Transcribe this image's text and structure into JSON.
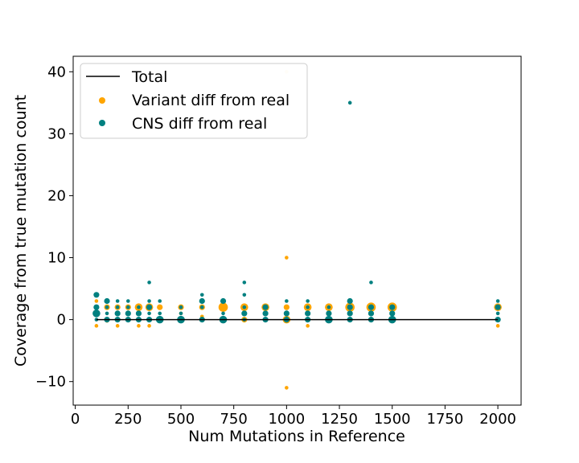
{
  "chart_data": {
    "type": "scatter",
    "title": "",
    "xlabel": "Num Mutations in Reference",
    "ylabel": "Coverage from true mutation count",
    "xlim": [
      -10,
      2110
    ],
    "ylim": [
      -13.8,
      42.5
    ],
    "xticks": [
      0,
      250,
      500,
      750,
      1000,
      1250,
      1500,
      1750,
      2000
    ],
    "yticks": [
      -10,
      0,
      10,
      20,
      30,
      40
    ],
    "grid": false,
    "legend_position": "top-left",
    "colors": {
      "total": "#000000",
      "variant": "#ffa500",
      "cns": "#008080"
    },
    "line": {
      "name": "Total",
      "x": [
        100,
        2000
      ],
      "y": [
        0,
        0
      ]
    },
    "series": [
      {
        "name": "Variant diff from real",
        "points": [
          {
            "x": 100,
            "y": 3,
            "s": 1
          },
          {
            "x": 100,
            "y": 1,
            "s": 1
          },
          {
            "x": 100,
            "y": -1,
            "s": 1
          },
          {
            "x": 150,
            "y": 2,
            "s": 2
          },
          {
            "x": 150,
            "y": -0.2,
            "s": 1
          },
          {
            "x": 200,
            "y": 2,
            "s": 2
          },
          {
            "x": 200,
            "y": -1,
            "s": 1
          },
          {
            "x": 250,
            "y": 2,
            "s": 2
          },
          {
            "x": 250,
            "y": 0,
            "s": 1
          },
          {
            "x": 300,
            "y": 2,
            "s": 3
          },
          {
            "x": 300,
            "y": -1,
            "s": 1
          },
          {
            "x": 350,
            "y": 2,
            "s": 3
          },
          {
            "x": 350,
            "y": -1,
            "s": 1
          },
          {
            "x": 400,
            "y": 2,
            "s": 2
          },
          {
            "x": 500,
            "y": 2,
            "s": 2
          },
          {
            "x": 500,
            "y": 1,
            "s": 1
          },
          {
            "x": 600,
            "y": 2,
            "s": 2
          },
          {
            "x": 600,
            "y": 0.5,
            "s": 1
          },
          {
            "x": 700,
            "y": 2,
            "s": 4
          },
          {
            "x": 800,
            "y": 2,
            "s": 3
          },
          {
            "x": 800,
            "y": 0,
            "s": 2
          },
          {
            "x": 900,
            "y": 2,
            "s": 3
          },
          {
            "x": 1000,
            "y": 40,
            "s": 1,
            "faint": true
          },
          {
            "x": 1000,
            "y": 10,
            "s": 1
          },
          {
            "x": 1000,
            "y": 2,
            "s": 2
          },
          {
            "x": 1000,
            "y": 0,
            "s": 3
          },
          {
            "x": 1000,
            "y": -11,
            "s": 1
          },
          {
            "x": 1100,
            "y": 2,
            "s": 3
          },
          {
            "x": 1100,
            "y": -1,
            "s": 1
          },
          {
            "x": 1200,
            "y": 2,
            "s": 3
          },
          {
            "x": 1300,
            "y": 2,
            "s": 4
          },
          {
            "x": 1400,
            "y": 2,
            "s": 4
          },
          {
            "x": 1500,
            "y": 2,
            "s": 4
          },
          {
            "x": 2000,
            "y": 2,
            "s": 3
          },
          {
            "x": 2000,
            "y": -1,
            "s": 1
          }
        ]
      },
      {
        "name": "CNS diff from real",
        "points": [
          {
            "x": 100,
            "y": 4,
            "s": 2
          },
          {
            "x": 100,
            "y": 2,
            "s": 2
          },
          {
            "x": 100,
            "y": 1,
            "s": 3
          },
          {
            "x": 100,
            "y": 0,
            "s": 1
          },
          {
            "x": 150,
            "y": 3,
            "s": 2
          },
          {
            "x": 150,
            "y": 2,
            "s": 1
          },
          {
            "x": 150,
            "y": 1,
            "s": 1
          },
          {
            "x": 150,
            "y": 0,
            "s": 2
          },
          {
            "x": 200,
            "y": 3,
            "s": 1
          },
          {
            "x": 200,
            "y": 2,
            "s": 1
          },
          {
            "x": 200,
            "y": 1,
            "s": 2
          },
          {
            "x": 200,
            "y": 0,
            "s": 2
          },
          {
            "x": 250,
            "y": 3,
            "s": 1
          },
          {
            "x": 250,
            "y": 2,
            "s": 1
          },
          {
            "x": 250,
            "y": 1,
            "s": 2
          },
          {
            "x": 250,
            "y": 0,
            "s": 2
          },
          {
            "x": 300,
            "y": 2,
            "s": 1
          },
          {
            "x": 300,
            "y": 1,
            "s": 2
          },
          {
            "x": 300,
            "y": 0,
            "s": 2
          },
          {
            "x": 350,
            "y": 6,
            "s": 1
          },
          {
            "x": 350,
            "y": 3,
            "s": 1
          },
          {
            "x": 350,
            "y": 2,
            "s": 2
          },
          {
            "x": 350,
            "y": 1,
            "s": 1
          },
          {
            "x": 350,
            "y": 0,
            "s": 2
          },
          {
            "x": 400,
            "y": 3,
            "s": 1
          },
          {
            "x": 400,
            "y": 1,
            "s": 1
          },
          {
            "x": 400,
            "y": 0,
            "s": 3
          },
          {
            "x": 500,
            "y": 2,
            "s": 1
          },
          {
            "x": 500,
            "y": 1,
            "s": 1
          },
          {
            "x": 500,
            "y": 0,
            "s": 3
          },
          {
            "x": 600,
            "y": 4,
            "s": 1
          },
          {
            "x": 600,
            "y": 3,
            "s": 2
          },
          {
            "x": 600,
            "y": 2,
            "s": 1
          },
          {
            "x": 600,
            "y": 0,
            "s": 2
          },
          {
            "x": 700,
            "y": 3,
            "s": 2
          },
          {
            "x": 700,
            "y": 1,
            "s": 1
          },
          {
            "x": 700,
            "y": 0,
            "s": 3
          },
          {
            "x": 800,
            "y": 6,
            "s": 1
          },
          {
            "x": 800,
            "y": 4,
            "s": 1
          },
          {
            "x": 800,
            "y": 2,
            "s": 1
          },
          {
            "x": 800,
            "y": 1,
            "s": 2
          },
          {
            "x": 800,
            "y": 0,
            "s": 1
          },
          {
            "x": 900,
            "y": 2,
            "s": 2
          },
          {
            "x": 900,
            "y": 1,
            "s": 2
          },
          {
            "x": 900,
            "y": 0,
            "s": 2
          },
          {
            "x": 1000,
            "y": 3,
            "s": 1
          },
          {
            "x": 1000,
            "y": 1,
            "s": 2
          },
          {
            "x": 1000,
            "y": 0,
            "s": 2
          },
          {
            "x": 1100,
            "y": 3,
            "s": 1
          },
          {
            "x": 1100,
            "y": 2,
            "s": 1
          },
          {
            "x": 1100,
            "y": 1,
            "s": 2
          },
          {
            "x": 1100,
            "y": 0,
            "s": 2
          },
          {
            "x": 1200,
            "y": 2,
            "s": 1
          },
          {
            "x": 1200,
            "y": 1,
            "s": 2
          },
          {
            "x": 1200,
            "y": 0,
            "s": 3
          },
          {
            "x": 1300,
            "y": 35,
            "s": 1
          },
          {
            "x": 1300,
            "y": 3,
            "s": 2
          },
          {
            "x": 1300,
            "y": 2,
            "s": 2
          },
          {
            "x": 1300,
            "y": 1,
            "s": 2
          },
          {
            "x": 1300,
            "y": 0,
            "s": 2
          },
          {
            "x": 1400,
            "y": 6,
            "s": 1
          },
          {
            "x": 1400,
            "y": 2,
            "s": 2
          },
          {
            "x": 1400,
            "y": 1,
            "s": 2
          },
          {
            "x": 1400,
            "y": 0,
            "s": 2
          },
          {
            "x": 1500,
            "y": 2,
            "s": 2
          },
          {
            "x": 1500,
            "y": 1,
            "s": 2
          },
          {
            "x": 1500,
            "y": 0,
            "s": 3
          },
          {
            "x": 2000,
            "y": 3,
            "s": 1
          },
          {
            "x": 2000,
            "y": 2,
            "s": 2
          },
          {
            "x": 2000,
            "y": 1,
            "s": 1
          },
          {
            "x": 2000,
            "y": 0,
            "s": 2
          }
        ]
      }
    ],
    "legend": {
      "line_label": "Total",
      "variant_label": "Variant diff from real",
      "cns_label": "CNS diff from real"
    }
  }
}
